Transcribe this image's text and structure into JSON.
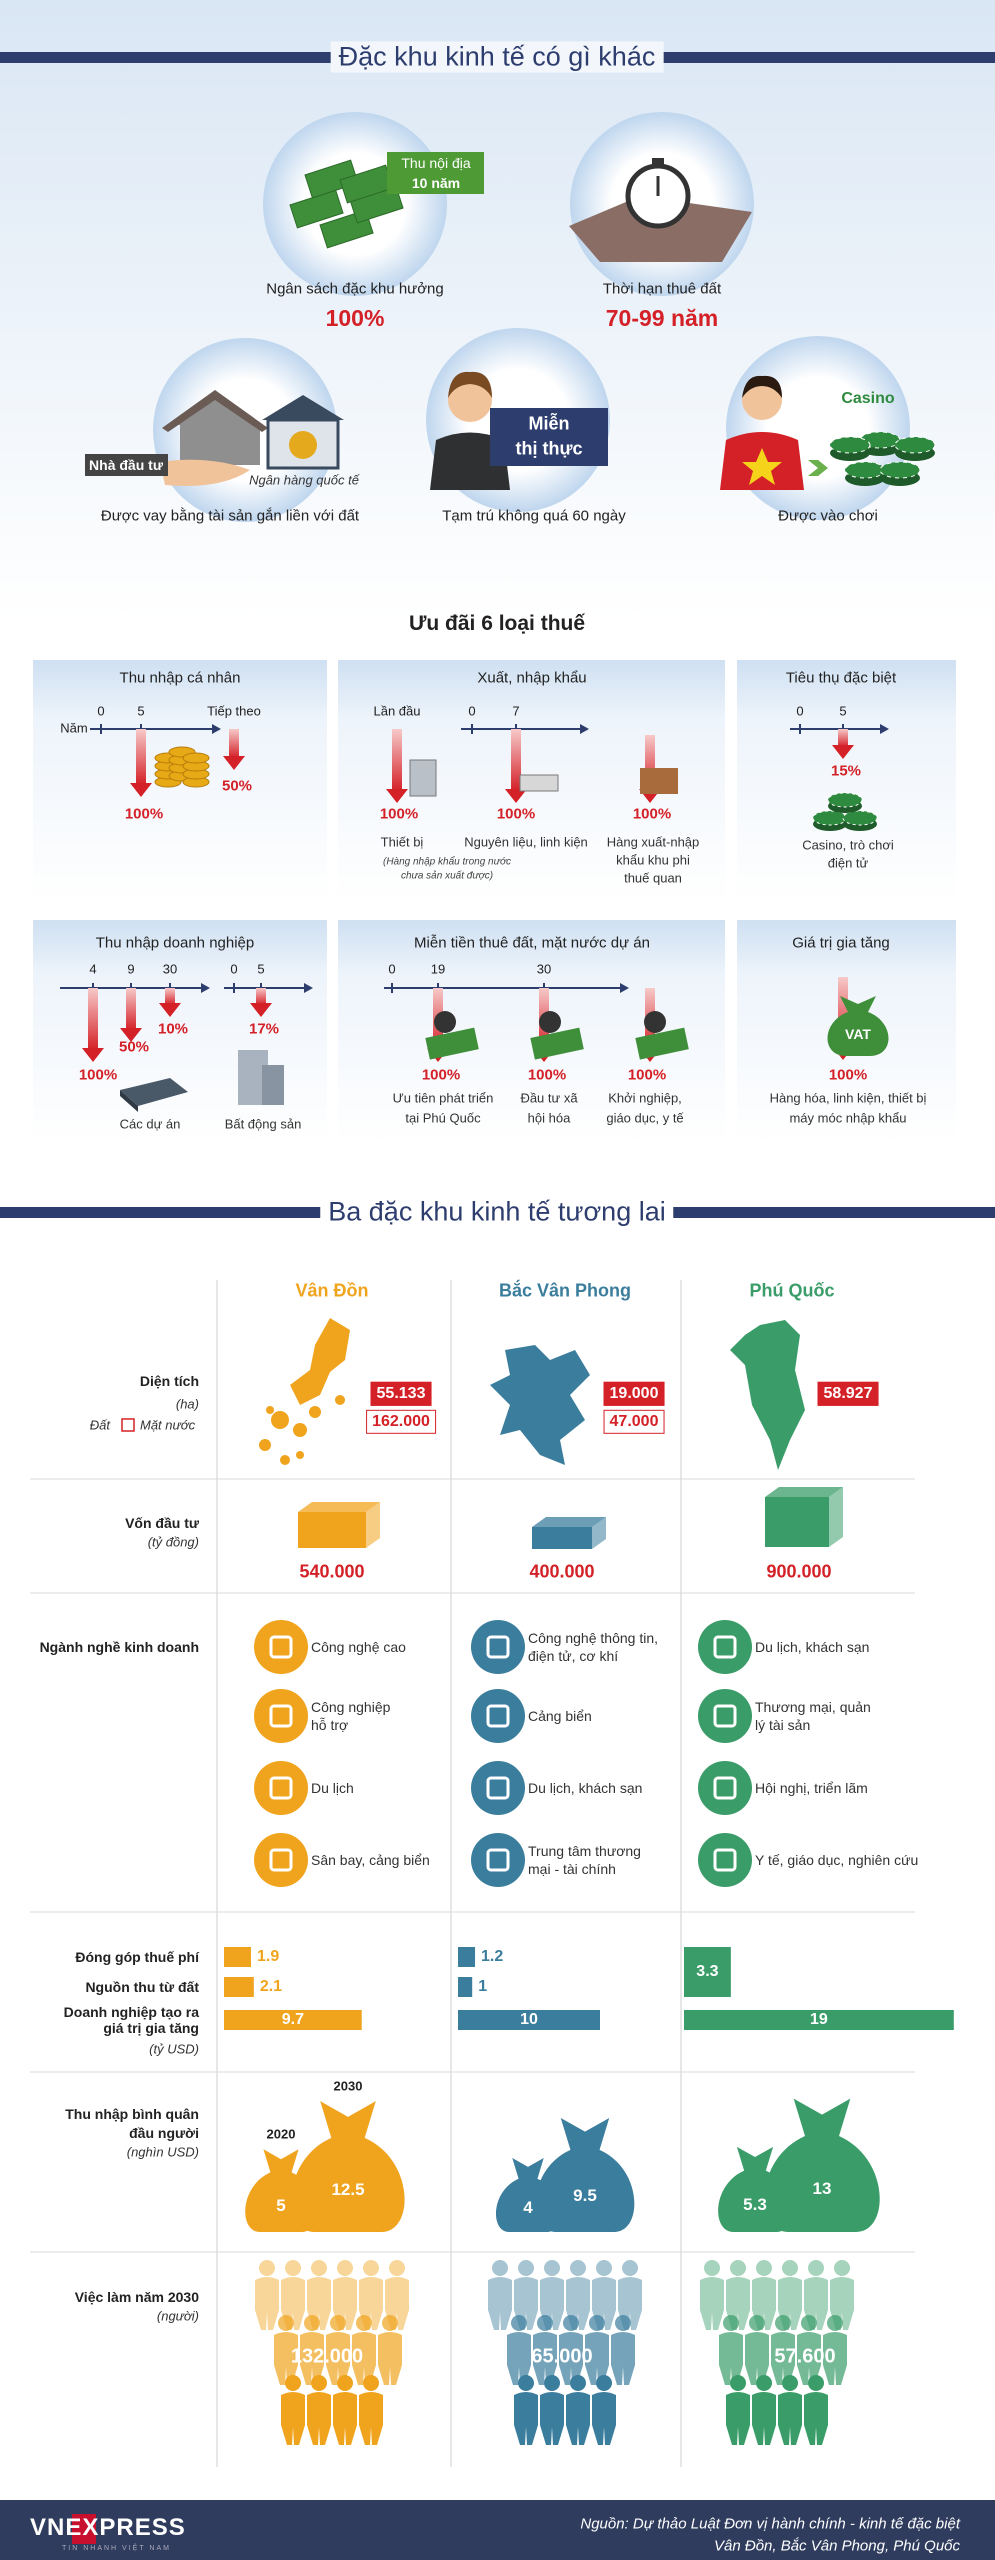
{
  "intro": {
    "title": "Đặc khu kinh tế có gì khác",
    "budget": {
      "badge": "Thu nội địa",
      "badge_years": "10 năm",
      "label": "Ngân sách đặc khu hưởng",
      "value": "100%"
    },
    "land": {
      "label": "Thời hạn thuê đất",
      "value": "70-99 năm"
    },
    "loan": {
      "investor": "Nhà đầu tư",
      "bank": "Ngân hàng quốc tế",
      "label": "Được vay bằng tài sản gắn liền với đất"
    },
    "visa": {
      "badge": [
        "Miễn",
        "thị thực"
      ],
      "label": "Tạm trú không quá 60 ngày"
    },
    "casino": {
      "badge": "Casino",
      "label": "Được vào chơi"
    }
  },
  "tax": {
    "title": "Ưu đãi 6 loại thuế",
    "personal": {
      "title": "Thu nhập cá nhân",
      "axis_label": "Năm",
      "ticks": [
        "0",
        "5",
        "Tiếp theo"
      ],
      "rates": [
        "100%",
        "50%"
      ]
    },
    "trade": {
      "title": "Xuất, nhập khẩu",
      "first": "Lần đầu",
      "ticks": [
        "0",
        "7"
      ],
      "rates": [
        "100%",
        "100%",
        "100%"
      ],
      "items": [
        [
          "Thiết bị"
        ],
        [
          "Nguyên liệu, linh kiện"
        ],
        [
          "Hàng xuất-nhập",
          "khẩu khu phi",
          "thuế quan"
        ]
      ],
      "note": [
        "(Hàng nhập khẩu trong nước",
        "chưa sản xuất được)"
      ]
    },
    "special": {
      "title": "Tiêu thụ đặc biệt",
      "ticks": [
        "0",
        "5"
      ],
      "rate": "15%",
      "item": [
        "Casino, trò chơi",
        "điện tử"
      ]
    },
    "corporate": {
      "title": "Thu nhập doanh nghiệp",
      "ticks": [
        "4",
        "9",
        "30"
      ],
      "rates": [
        "100%",
        "50%",
        "10%"
      ],
      "ticks2": [
        "0",
        "5"
      ],
      "rate2": "17%",
      "items": [
        "Các dự án",
        "Bất động sản"
      ]
    },
    "rent": {
      "title": "Miễn tiền thuê đất, mặt nước dự án",
      "ticks": [
        "0",
        "19",
        "30"
      ],
      "rates": [
        "100%",
        "100%",
        "100%"
      ],
      "items": [
        [
          "Ưu tiên phát triển",
          "tại Phú Quốc"
        ],
        [
          "Đầu tư xã",
          "hội hóa"
        ],
        [
          "Khởi nghiệp,",
          "giáo dục, y tế"
        ]
      ]
    },
    "vat": {
      "title": "Giá trị gia tăng",
      "badge": "VAT",
      "rate": "100%",
      "item": [
        "Hàng hóa, linh kiện, thiết bị",
        "máy móc nhập khẩu"
      ]
    }
  },
  "future": {
    "title": "Ba đặc khu kinh tế tương lai",
    "rows": {
      "area": [
        "Diện tích",
        "(ha)"
      ],
      "legend": [
        "Đất",
        "Mặt nước"
      ],
      "capital": [
        "Vốn đầu tư",
        "(tỷ đồng)"
      ],
      "industries": "Ngành nghề kinh doanh",
      "budget": [
        [
          "Đóng góp thuế phí"
        ],
        [
          "Nguồn thu từ đất"
        ],
        [
          "Doanh nghiệp tạo ra",
          "giá trị gia tăng"
        ]
      ],
      "budget_unit": "(tỷ USD)",
      "income": [
        "Thu nhập bình quân",
        "đầu người",
        "(nghìn USD)"
      ],
      "years": [
        "2020",
        "2030"
      ],
      "jobs": [
        "Việc làm năm 2030",
        "(người)"
      ]
    },
    "zones": [
      {
        "name": "Vân Đồn",
        "color": "#f0a41e",
        "area": [
          "55.133",
          "162.000"
        ],
        "capital": "540.000",
        "industries": [
          [
            "Công nghệ cao"
          ],
          [
            "Công nghiệp",
            "hỗ trợ"
          ],
          [
            "Du lịch"
          ],
          [
            "Sân bay, cảng biển"
          ]
        ],
        "budget": [
          1.9,
          2.1,
          9.7
        ],
        "income": [
          5,
          12.5
        ],
        "jobs": "132.000"
      },
      {
        "name": "Bắc Vân Phong",
        "color": "#3b7d9c",
        "area": [
          "19.000",
          "47.000"
        ],
        "capital": "400.000",
        "industries": [
          [
            "Công nghệ thông tin,",
            "điện tử, cơ khí"
          ],
          [
            "Cảng biển"
          ],
          [
            "Du lịch, khách sạn"
          ],
          [
            "Trung tâm thương",
            "mại - tài chính"
          ]
        ],
        "budget": [
          1.2,
          1,
          10
        ],
        "income": [
          4,
          9.5
        ],
        "jobs": "65.000"
      },
      {
        "name": "Phú Quốc",
        "color": "#3a9d69",
        "area": [
          "58.927"
        ],
        "capital": "900.000",
        "industries": [
          [
            "Du lịch, khách sạn"
          ],
          [
            "Thương mại, quản",
            "lý tài sản"
          ],
          [
            "Hội nghị, triển lãm"
          ],
          [
            "Y tế, giáo dục, nghiên cứu"
          ]
        ],
        "budget": [
          3.3,
          null,
          19
        ],
        "income": [
          5.3,
          13
        ],
        "jobs": "57.600"
      }
    ]
  },
  "footer": {
    "logo": "VNEXPRESS",
    "tagline": "TIN NHANH VIỆT NAM",
    "source": [
      "Nguồn: Dự thảo Luật Đơn vị hành chính - kinh tế đặc biệt",
      "Vân Đồn, Bắc Vân Phong, Phú Quốc"
    ]
  }
}
